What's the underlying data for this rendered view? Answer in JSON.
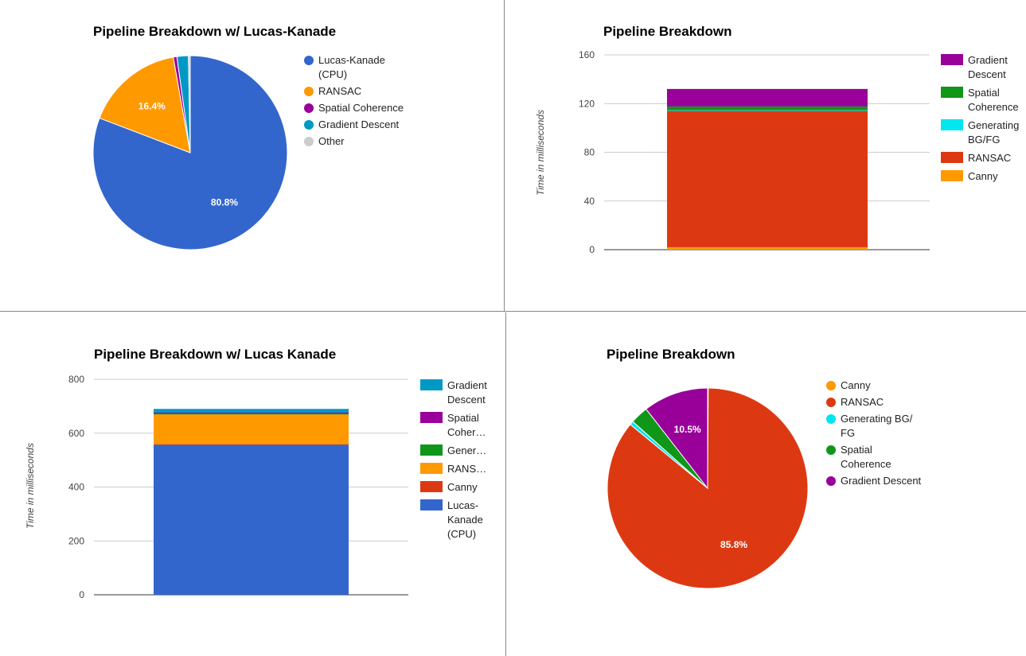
{
  "chart_data": [
    {
      "type": "pie",
      "title": "Pipeline Breakdown w/ Lucas-Kanade",
      "slices": [
        {
          "name": "Lucas-Kanade (CPU)",
          "value": 80.8,
          "label": "80.8%",
          "color": "#3366cc"
        },
        {
          "name": "RANSAC",
          "value": 16.4,
          "label": "16.4%",
          "color": "#ff9900"
        },
        {
          "name": "Spatial Coherence",
          "value": 0.6,
          "label": "",
          "color": "#990099"
        },
        {
          "name": "Gradient Descent",
          "value": 1.9,
          "label": "",
          "color": "#0099c6"
        },
        {
          "name": "Other",
          "value": 0.3,
          "label": "",
          "color": "#cccccc"
        }
      ],
      "legend": [
        {
          "lines": [
            "Lucas-Kanade",
            "(CPU)"
          ],
          "color": "#3366cc"
        },
        {
          "lines": [
            "RANSAC"
          ],
          "color": "#ff9900"
        },
        {
          "lines": [
            "Spatial Coherence"
          ],
          "color": "#990099"
        },
        {
          "lines": [
            "Gradient Descent"
          ],
          "color": "#0099c6"
        },
        {
          "lines": [
            "Other"
          ],
          "color": "#cccccc"
        }
      ],
      "legend_position": "right"
    },
    {
      "type": "bar",
      "stacked": true,
      "title": "Pipeline Breakdown",
      "ylabel": "Time in milliseconds",
      "ylim": [
        0,
        160
      ],
      "yticks": [
        0,
        40,
        80,
        120,
        160
      ],
      "series": [
        {
          "name": "Canny",
          "value": 2,
          "color": "#ff9900"
        },
        {
          "name": "RANSAC",
          "value": 112,
          "color": "#dc3912"
        },
        {
          "name": "Generating BG/FG",
          "value": 0.6,
          "color": "#00e5ee"
        },
        {
          "name": "Spatial Coherence",
          "value": 3,
          "color": "#109618"
        },
        {
          "name": "Gradient Descent",
          "value": 14.4,
          "color": "#990099"
        }
      ],
      "legend": [
        {
          "lines": [
            "Gradient",
            "Descent"
          ],
          "color": "#990099"
        },
        {
          "lines": [
            "Spatial",
            "Coherence"
          ],
          "color": "#109618"
        },
        {
          "lines": [
            "Generating",
            "BG/FG"
          ],
          "color": "#00e5ee"
        },
        {
          "lines": [
            "RANSAC"
          ],
          "color": "#dc3912"
        },
        {
          "lines": [
            "Canny"
          ],
          "color": "#ff9900"
        }
      ],
      "legend_position": "right"
    },
    {
      "type": "bar",
      "stacked": true,
      "title": "Pipeline Breakdown w/ Lucas Kanade",
      "ylabel": "Time in milliseconds",
      "ylim": [
        0,
        800
      ],
      "yticks": [
        0,
        200,
        400,
        600,
        800
      ],
      "series": [
        {
          "name": "Lucas-Kanade (CPU)",
          "value": 557,
          "color": "#3366cc"
        },
        {
          "name": "Canny",
          "value": 2,
          "color": "#dc3912"
        },
        {
          "name": "RANSAC",
          "value": 112,
          "color": "#ff9900"
        },
        {
          "name": "Generating BG/FG",
          "value": 1,
          "color": "#109618"
        },
        {
          "name": "Spatial Coherence",
          "value": 4,
          "color": "#990099"
        },
        {
          "name": "Gradient Descent",
          "value": 14,
          "color": "#0099c6"
        }
      ],
      "legend": [
        {
          "lines": [
            "Gradient",
            "Descent"
          ],
          "color": "#0099c6"
        },
        {
          "lines": [
            "Spatial",
            "Coher…"
          ],
          "color": "#990099"
        },
        {
          "lines": [
            "Gener…"
          ],
          "color": "#109618"
        },
        {
          "lines": [
            "RANS…"
          ],
          "color": "#ff9900"
        },
        {
          "lines": [
            "Canny"
          ],
          "color": "#dc3912"
        },
        {
          "lines": [
            "Lucas-",
            "Kanade",
            "(CPU)"
          ],
          "color": "#3366cc"
        }
      ],
      "legend_position": "right"
    },
    {
      "type": "pie",
      "title": "Pipeline Breakdown",
      "slices": [
        {
          "name": "Canny",
          "value": 0.1,
          "label": "",
          "color": "#ff9900"
        },
        {
          "name": "RANSAC",
          "value": 85.8,
          "label": "85.8%",
          "color": "#dc3912"
        },
        {
          "name": "Generating BG/FG",
          "value": 0.6,
          "label": "",
          "color": "#00e5ee"
        },
        {
          "name": "Spatial Coherence",
          "value": 2.9,
          "label": "",
          "color": "#109618"
        },
        {
          "name": "Gradient Descent",
          "value": 10.5,
          "label": "10.5%",
          "color": "#990099"
        }
      ],
      "legend": [
        {
          "lines": [
            "Canny"
          ],
          "color": "#ff9900"
        },
        {
          "lines": [
            "RANSAC"
          ],
          "color": "#dc3912"
        },
        {
          "lines": [
            "Generating BG/",
            "FG"
          ],
          "color": "#00e5ee"
        },
        {
          "lines": [
            "Spatial",
            "Coherence"
          ],
          "color": "#109618"
        },
        {
          "lines": [
            "Gradient Descent"
          ],
          "color": "#990099"
        }
      ],
      "legend_position": "right"
    }
  ]
}
